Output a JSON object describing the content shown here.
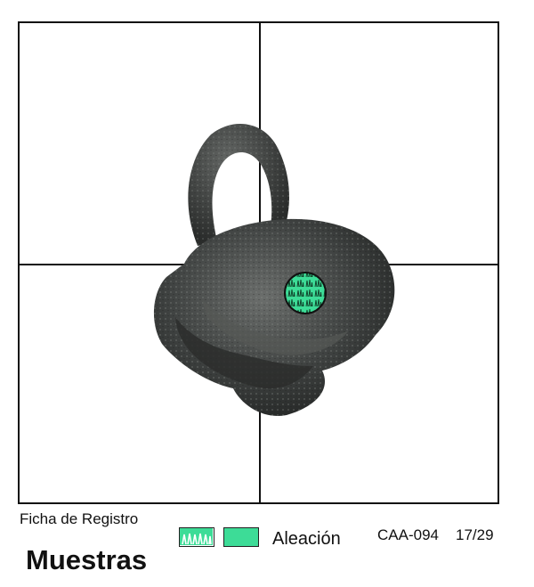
{
  "record": {
    "header_label": "Ficha de Registro",
    "section_title": "Muestras",
    "code": "CAA-094",
    "page": "17/29"
  },
  "legend": {
    "label": "Aleación",
    "pattern_swatch_icon": "pattern-swatch-icon",
    "solid_swatch_icon": "solid-swatch-icon",
    "color": "#3ddc97"
  },
  "photo": {
    "subject_icon": "metal-artifact-photo",
    "sample_marker_icon": "sample-point-icon"
  }
}
